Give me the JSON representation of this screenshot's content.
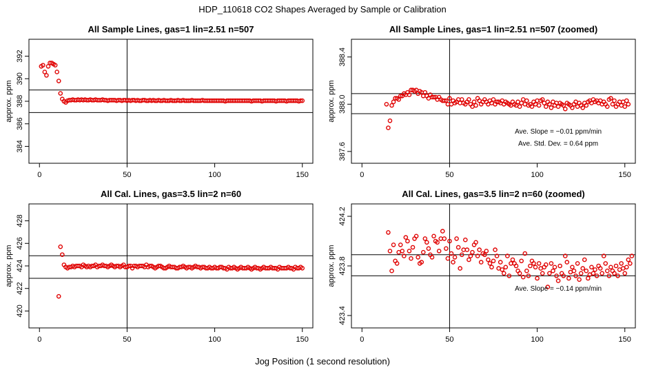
{
  "figure": {
    "title": "HDP_110618  CO2 Shapes Averaged by Sample or Calibration",
    "xlabel": "Jog Position (1 second resolution)"
  },
  "chart_data": [
    {
      "type": "scatter",
      "title": "All Sample Lines, gas=1 lin=2.51 n=507",
      "xlabel": "",
      "ylabel": "approx. ppm",
      "xlim": [
        -6,
        156
      ],
      "ylim": [
        382.5,
        393.5
      ],
      "xticks": [
        "0",
        "50",
        "100",
        "150"
      ],
      "yticks": [
        "384",
        "386",
        "388",
        "390",
        "392"
      ],
      "x_start": 1,
      "vline": 50,
      "hlines": [
        389.0,
        387.0
      ],
      "marker_color": "#e00000",
      "series": [
        {
          "values": [
            391.1,
            391.2,
            390.6,
            390.3,
            391.1,
            391.4,
            391.4,
            391.3,
            391.2,
            390.6,
            389.8,
            388.7,
            388.2,
            388.0,
            387.9,
            388.05,
            388.1,
            388.1,
            388.15,
            388.1,
            388.1,
            388.15,
            388.1,
            388.15,
            388.1,
            388.15,
            388.1,
            388.1,
            388.15,
            388.1,
            388.1,
            388.15,
            388.1,
            388.1,
            388.1,
            388.15,
            388.1,
            388.1,
            388.05,
            388.1,
            388.1,
            388.1,
            388.1,
            388.05,
            388.1,
            388.1,
            388.05,
            388.1,
            388.1,
            388.05,
            388.1,
            388.05,
            388.1,
            388.1,
            388.05,
            388.1,
            388.05,
            388.05,
            388.1,
            388.1,
            388.05,
            388.05,
            388.1,
            388.05,
            388.1,
            388.05,
            388.05,
            388.1,
            388.05,
            388.05,
            388.1,
            388.05,
            388.05,
            388.05,
            388.1,
            388.05,
            388.05,
            388.05,
            388.1,
            388.05,
            388.05,
            388.1,
            388.05,
            388.05,
            388.05,
            388.05,
            388.1,
            388.05,
            388.05,
            388.05,
            388.05,
            388.05,
            388.1,
            388.05,
            388.05,
            388.05,
            388.05,
            388.05,
            388.05,
            388.05,
            388.05,
            388.05,
            388.05,
            388.05,
            388.05,
            388.0,
            388.05,
            388.05,
            388.05,
            388.05,
            388.05,
            388.05,
            388.05,
            388.05,
            388.05,
            388.05,
            388.05,
            388.05,
            388.05,
            388.05,
            388.0,
            388.05,
            388.05,
            388.05,
            388.05,
            388.05,
            388.0,
            388.05,
            388.05,
            388.05,
            388.05,
            388.05,
            388.05,
            388.05,
            388.0,
            388.05,
            388.05,
            388.05,
            388.05,
            388.05,
            388.0,
            388.05,
            388.05,
            388.05,
            388.05,
            388.05,
            388.05,
            388.0,
            388.05,
            388.05
          ]
        }
      ],
      "annotations": []
    },
    {
      "type": "scatter",
      "title": "All Sample Lines, gas=1 lin=2.51 n=507 (zoomed)",
      "xlabel": "",
      "ylabel": "approx. ppm",
      "xlim": [
        -6,
        156
      ],
      "ylim": [
        387.5,
        388.55
      ],
      "xticks": [
        "0",
        "50",
        "100",
        "150"
      ],
      "yticks": [
        "387.6",
        "388.0",
        "388.4"
      ],
      "x_start": 14,
      "vline": 50,
      "hlines": [
        388.09,
        387.92
      ],
      "marker_color": "#e00000",
      "series": [
        {
          "values": [
            388.0,
            387.8,
            387.86,
            387.99,
            388.02,
            388.05,
            388.05,
            388.04,
            388.07,
            388.07,
            388.09,
            388.08,
            388.1,
            388.08,
            388.12,
            388.12,
            388.11,
            388.12,
            388.09,
            388.11,
            388.1,
            388.07,
            388.1,
            388.07,
            388.05,
            388.08,
            388.06,
            388.06,
            388.06,
            388.04,
            388.06,
            388.04,
            388.03,
            388.03,
            388.03,
            388.0,
            388.05,
            388.0,
            388.03,
            388.01,
            388.02,
            388.04,
            388.01,
            388.04,
            388.01,
            388.0,
            388.02,
            388.04,
            388.0,
            387.98,
            388.02,
            387.99,
            388.05,
            388.03,
            388.0,
            388.02,
            388.04,
            388.02,
            388.0,
            388.03,
            388.01,
            388.04,
            388.0,
            388.02,
            388.02,
            388.01,
            388.03,
            388.0,
            388.02,
            388.01,
            388.0,
            387.99,
            388.02,
            388.0,
            387.99,
            388.02,
            387.98,
            388.01,
            388.04,
            388.0,
            388.03,
            387.99,
            388.0,
            387.98,
            388.02,
            388.0,
            388.03,
            387.99,
            388.03,
            388.04,
            388.01,
            387.98,
            388.02,
            388.0,
            387.97,
            388.02,
            387.99,
            388.01,
            387.98,
            388.01,
            388.0,
            387.99,
            387.96,
            388.01,
            388.0,
            387.99,
            387.97,
            388.0,
            388.02,
            387.98,
            388.01,
            387.99,
            387.97,
            388.01,
            387.99,
            388.02,
            388.03,
            388.01,
            388.04,
            388.02,
            388.03,
            388.01,
            388.03,
            388.0,
            388.02,
            388.0,
            387.98,
            388.04,
            388.05,
            388.0,
            388.03,
            387.98,
            388.0,
            388.02,
            387.99,
            388.02,
            387.98,
            388.03,
            388.0
          ]
        }
      ],
      "annotations": [
        {
          "text": "Ave. Slope =  −0.01  ppm/min",
          "x": 112,
          "y": 387.75
        },
        {
          "text": "Ave. Std. Dev. =  0.64  ppm",
          "x": 112,
          "y": 387.65
        }
      ]
    },
    {
      "type": "scatter",
      "title": "All Cal. Lines, gas=3.5 lin=2 n=60",
      "xlabel": "",
      "ylabel": "approx. ppm",
      "xlim": [
        -6,
        156
      ],
      "ylim": [
        418.5,
        429.5
      ],
      "xticks": [
        "0",
        "50",
        "100",
        "150"
      ],
      "yticks": [
        "420",
        "422",
        "424",
        "426",
        "428"
      ],
      "x_start": 11,
      "vline": 50,
      "hlines": [
        424.9,
        422.9
      ],
      "marker_color": "#e00000",
      "series": [
        {
          "values": [
            421.3,
            425.7,
            425.0,
            424.1,
            423.9,
            423.8,
            423.9,
            423.9,
            424.0,
            423.9,
            424.0,
            424.0,
            424.0,
            423.9,
            424.1,
            424.0,
            423.9,
            424.0,
            423.9,
            424.0,
            424.0,
            424.1,
            423.9,
            424.0,
            424.0,
            424.1,
            424.0,
            424.0,
            423.9,
            424.0,
            424.1,
            424.0,
            423.9,
            424.0,
            424.0,
            423.9,
            424.0,
            424.1,
            423.9,
            423.9,
            424.0,
            424.0,
            423.8,
            424.0,
            424.0,
            423.9,
            424.0,
            424.0,
            424.0,
            423.9,
            424.1,
            423.9,
            424.0,
            424.0,
            423.9,
            423.8,
            423.9,
            424.0,
            424.0,
            423.9,
            423.8,
            423.8,
            423.9,
            424.0,
            423.9,
            423.9,
            423.9,
            423.8,
            423.8,
            423.9,
            423.9,
            424.0,
            423.9,
            423.8,
            423.9,
            423.9,
            423.8,
            423.9,
            424.0,
            423.9,
            423.9,
            423.8,
            423.9,
            423.9,
            423.8,
            423.8,
            423.9,
            423.8,
            423.8,
            423.9,
            423.8,
            423.8,
            423.9,
            423.9,
            423.8,
            423.8,
            423.7,
            423.9,
            423.8,
            423.8,
            423.9,
            423.8,
            423.7,
            423.8,
            423.9,
            423.8,
            423.8,
            423.8,
            423.9,
            423.8,
            423.7,
            423.8,
            423.9,
            423.8,
            423.8,
            423.7,
            423.8,
            423.9,
            423.8,
            423.8,
            423.8,
            423.9,
            423.8,
            423.8,
            423.8,
            423.7,
            423.9,
            423.8,
            423.8,
            423.8,
            423.8,
            423.9,
            423.8,
            423.8,
            423.7,
            423.9,
            423.8,
            423.8,
            423.9,
            423.8
          ]
        }
      ],
      "annotations": []
    },
    {
      "type": "scatter",
      "title": "All Cal. Lines, gas=3.5 lin=2 n=60 (zoomed)",
      "xlabel": "",
      "ylabel": "approx. ppm",
      "xlim": [
        -6,
        156
      ],
      "ylim": [
        423.3,
        424.3
      ],
      "xticks": [
        "0",
        "50",
        "100",
        "150"
      ],
      "yticks": [
        "423.4",
        "423.8",
        "424.2"
      ],
      "x_start": 15,
      "vline": 50,
      "hlines": [
        423.89,
        423.72
      ],
      "marker_color": "#e00000",
      "series": [
        {
          "values": [
            424.07,
            423.92,
            423.76,
            423.97,
            423.84,
            423.82,
            423.91,
            423.97,
            423.92,
            423.88,
            424.03,
            424.0,
            423.92,
            423.86,
            423.95,
            424.02,
            424.04,
            423.87,
            423.82,
            423.83,
            423.91,
            424.02,
            423.99,
            423.94,
            423.89,
            423.87,
            424.04,
            424.0,
            423.99,
            423.92,
            424.02,
            424.08,
            424.02,
            423.94,
            423.86,
            424.0,
            423.9,
            423.83,
            423.87,
            424.02,
            423.95,
            423.78,
            423.89,
            423.93,
            424.01,
            423.93,
            423.85,
            423.88,
            423.91,
            423.97,
            423.99,
            423.88,
            423.93,
            423.83,
            423.9,
            423.89,
            423.92,
            423.85,
            423.82,
            423.79,
            423.84,
            423.93,
            423.88,
            423.78,
            423.83,
            423.77,
            423.74,
            423.79,
            423.88,
            423.72,
            423.82,
            423.85,
            423.82,
            423.8,
            423.76,
            423.74,
            423.84,
            423.71,
            423.9,
            423.76,
            423.72,
            423.8,
            423.84,
            423.82,
            423.79,
            423.7,
            423.82,
            423.78,
            423.74,
            423.79,
            423.81,
            423.63,
            423.74,
            423.82,
            423.76,
            423.79,
            423.72,
            423.68,
            423.8,
            423.74,
            423.72,
            423.88,
            423.83,
            423.7,
            423.75,
            423.79,
            423.76,
            423.72,
            423.82,
            423.69,
            423.74,
            423.78,
            423.85,
            423.76,
            423.7,
            423.73,
            423.79,
            423.74,
            423.77,
            423.72,
            423.8,
            423.78,
            423.74,
            423.88,
            423.82,
            423.76,
            423.72,
            423.79,
            423.76,
            423.74,
            423.8,
            423.72,
            423.77,
            423.82,
            423.78,
            423.74,
            423.79,
            423.85,
            423.82,
            423.88
          ]
        }
      ],
      "annotations": [
        {
          "text": "Ave. Slope =  −0.14  ppm/min",
          "x": 112,
          "y": 423.6
        }
      ]
    }
  ]
}
